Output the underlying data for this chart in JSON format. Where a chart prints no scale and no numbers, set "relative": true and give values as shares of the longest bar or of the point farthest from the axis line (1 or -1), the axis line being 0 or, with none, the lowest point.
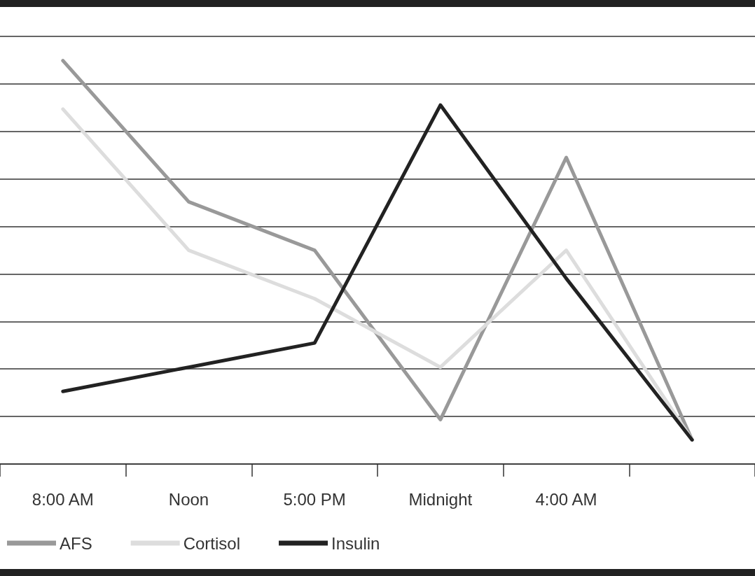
{
  "chart_data": {
    "type": "line",
    "relative": true,
    "grid": "y",
    "legend": "bottom left",
    "marker": "none",
    "line_style": "solid",
    "categories": [
      "8:00 AM",
      "Noon",
      "5:00 PM",
      "Midnight",
      "4:00 AM",
      null
    ],
    "series": [
      {
        "name": "AFS",
        "color": "#999999",
        "values": [
          1,
          0.65,
          0.53,
          0.11,
          0.76,
          0.06
        ]
      },
      {
        "name": "Cortisol",
        "color": "#dddddd",
        "values": [
          0.88,
          0.53,
          0.41,
          0.24,
          0.53,
          0.06
        ]
      },
      {
        "name": "Insulin",
        "color": "#222222",
        "values": [
          0.18,
          0.24,
          0.3,
          0.89,
          0.46,
          0.06
        ]
      }
    ]
  }
}
